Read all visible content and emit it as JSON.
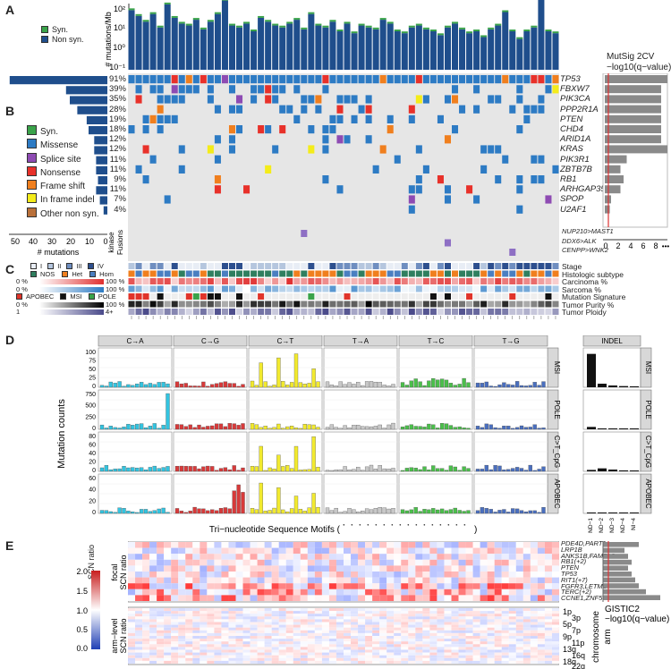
{
  "panels": {
    "A": "A",
    "B": "B",
    "C": "C",
    "D": "D",
    "E": "E"
  },
  "panelA": {
    "ylabel": "# mutations/Mb",
    "yticks": [
      "10²",
      "10¹",
      "10⁰",
      "10⁻¹"
    ],
    "legend": [
      {
        "label": "Syn.",
        "color": "#3aa34a"
      },
      {
        "label": "Non syn.",
        "color": "#1f4e8c"
      }
    ],
    "tmb_values": [
      2.1,
      1.8,
      1.5,
      1.9,
      1.2,
      2.4,
      1.7,
      1.4,
      1.3,
      1.6,
      1.1,
      1.5,
      1.9,
      2.6,
      1.3,
      1.2,
      1.4,
      1.0,
      1.7,
      1.5,
      1.3,
      1.2,
      1.4,
      1.6,
      1.1,
      1.9,
      1.3,
      1.2,
      1.5,
      1.0,
      1.4,
      0.9,
      1.3,
      1.2,
      1.1,
      1.6,
      1.4,
      1.0,
      0.9,
      1.2,
      1.3,
      1.1,
      1.0,
      0.8,
      1.2,
      1.4,
      1.1,
      0.9,
      1.0,
      0.7,
      1.1,
      1.3,
      2.0,
      1.0,
      0.6,
      1.0,
      1.2,
      3.1,
      1.0,
      0.9
    ]
  },
  "mutsig": {
    "title1": "MutSig 2CV",
    "title2": "−log10(q−value)",
    "xticks": [
      "0",
      "2",
      "4",
      "6",
      "8",
      "•••"
    ],
    "values": [
      10,
      9,
      9,
      9,
      9,
      9,
      9,
      10,
      3.5,
      2.5,
      3,
      2.5,
      1,
      0.8,
      0,
      0,
      0
    ]
  },
  "panelB": {
    "legend": [
      {
        "label": "Syn.",
        "color": "#3aa34a"
      },
      {
        "label": "Missense",
        "color": "#2d7bc4"
      },
      {
        "label": "Splice site",
        "color": "#8e4bb3"
      },
      {
        "label": "Nonsense",
        "color": "#e8312a"
      },
      {
        "label": "Frame shift",
        "color": "#f07f1e"
      },
      {
        "label": "In frame indel",
        "color": "#f4ec1a"
      },
      {
        "label": "Other non syn.",
        "color": "#b9703a"
      }
    ],
    "genes": [
      "TP53",
      "FBXW7",
      "PIK3CA",
      "PPP2R1A",
      "PTEN",
      "CHD4",
      "ARID1A",
      "KRAS",
      "PIK3R1",
      "ZBTB7B",
      "RB1",
      "ARHGAP35",
      "SPOP",
      "U2AF1"
    ],
    "pcts": [
      "91%",
      "39%",
      "35%",
      "28%",
      "19%",
      "18%",
      "12%",
      "12%",
      "11%",
      "11%",
      "9%",
      "11%",
      "7%",
      "4%"
    ],
    "counts": [
      52,
      22,
      20,
      16,
      11,
      10,
      7,
      7,
      6,
      6,
      5,
      6,
      4,
      2
    ],
    "xticks": [
      "50",
      "40",
      "30",
      "20",
      "10",
      "0"
    ],
    "xlabel": "# mutations",
    "fusion_label1": "kinase",
    "fusion_label2": "Fusions",
    "fusions": [
      "NUP210>MAST1",
      "DDX6>ALK",
      "CENPP>WNK2"
    ]
  },
  "panelC": {
    "stage_legend": [
      "I",
      "II",
      "III",
      "IV"
    ],
    "histo_legend": [
      "NOS",
      "Het",
      "Hom"
    ],
    "carcinoma": [
      "0 %",
      "100 %"
    ],
    "sarcoma": [
      "0 %",
      "100 %"
    ],
    "sig_legend": [
      "APOBEC",
      "MSI",
      "POLE"
    ],
    "purity": [
      "0 %",
      "100 %"
    ],
    "ploidy": [
      "1",
      "4+"
    ],
    "track_labels": [
      "Stage",
      "Histologic subtype",
      "Carcinoma %",
      "Sarcoma %",
      "Mutation Signature",
      "Tumor Purity %",
      "Tumor Ploidy"
    ],
    "samples": [
      "N5-A4WC",
      "N8-A4RT",
      "N5-A4RS",
      "N5-A4RU",
      "N5-A4RJ",
      "N5-A4RN",
      "N8-A4PN",
      "N9-A4Q1",
      "NA-A4QX",
      "N5-A4RO",
      "NG-A4VU",
      "N5-A4RV",
      "NA-A4QV",
      "N9-A4QT",
      "N8-A4PQ",
      "N5-A4RE",
      "N8-A4PL",
      "N5-A4RW",
      "N5-A4RF",
      "N5-A4RA",
      "N5-A4RM",
      "N6-A4VF",
      "NF-A4WX",
      "NF-A4X2",
      "N8-A56S",
      "N6-A4VC",
      "N9-A4Q7",
      "N8-A4QY",
      "N8-A4PO",
      "NA-A4R1",
      "N5-A4RD",
      "NG-A4VW",
      "N9-A4PZ",
      "N7-A4Y5",
      "N8-A56T",
      "NF-A5CP",
      "N5-A4RX",
      "N5-A4R8",
      "N8-A4PM",
      "N9-A4Q3",
      "N5-A4RB",
      "N9-A4Q8",
      "QN-A5NM",
      "NA-A4QW",
      "N6-A4VD",
      "N6-A4VG",
      "N5-A4R4",
      "N8-A4PI",
      "N7-A4Y8",
      "NA-A4QY",
      "NF-A4WU",
      "QN-A5NN",
      "N5-A4RX",
      "N8-A4PP",
      "N8-A4PR",
      "N9-A4Q6",
      "NA-A4R0",
      "N6-A4VE",
      "N7-A4Y0",
      "NA-A4QZ"
    ]
  },
  "panelD": {
    "columns": [
      "C→A",
      "C→G",
      "C→T",
      "T→A",
      "T→C",
      "T→G"
    ],
    "rows": [
      "MSI",
      "POLE",
      "C>T_CpG",
      "APOBEC"
    ],
    "row_yticks": [
      [
        "100",
        "75",
        "50",
        "25",
        "0"
      ],
      [
        "750",
        "500",
        "250",
        "0"
      ],
      [
        "80",
        "60",
        "40",
        "20",
        "0"
      ],
      [
        "60",
        "40",
        "20",
        "0"
      ]
    ],
    "row_max": [
      120,
      800,
      90,
      80
    ],
    "ylabel": "Mutation counts",
    "xlabel": "Tri−nucleotide Sequence Motifs (",
    "xlabel_end": ")",
    "indel_title": "INDEL",
    "indel_xticks": [
      "ND−1",
      "ND−2",
      "ND−3",
      "ND−4",
      "NI−4"
    ],
    "indel_values": [
      [
        280,
        30,
        15,
        10,
        8
      ],
      [
        20,
        5,
        3,
        2,
        2
      ],
      [
        12,
        25,
        15,
        8,
        6
      ],
      [
        5,
        3,
        2,
        1,
        1
      ]
    ],
    "colors": [
      "#33c4e0",
      "#d83a3a",
      "#f2ea2e",
      "#c8c8c8",
      "#4bbf4b",
      "#4a6fbf"
    ]
  },
  "panelE": {
    "colorbar_title": "SCN ratio",
    "colorbar_ticks": [
      "2.0",
      "1.5",
      "1.0",
      "0.5",
      "0.0"
    ],
    "focal_label1": "focal",
    "focal_label2": "SCN ratio",
    "arm_label1": "arm−level",
    "arm_label2": "SCN ratio",
    "focal_genes": [
      "PDE4D,PART1",
      "LRP1B",
      "ANKS1B,FAM71C",
      "RB1(+2)",
      "PTEN",
      "TP53",
      "RIT1(+7)",
      "FGFR3,LETM1",
      "TERC(+2)",
      "CCNE1,ZNF536"
    ],
    "arms_left": [
      "1p",
      "5p",
      "9p",
      "13q",
      "18q"
    ],
    "arms_right": [
      "3p",
      "7p",
      "11p",
      "16q",
      "22q"
    ],
    "chrom_label": "chromosome",
    "arm_word": "arm",
    "gistic_title": "GISTIC2",
    "gistic_sub": "−log10(q−value)",
    "gistic_values": [
      5,
      3,
      3.5,
      4,
      3.5,
      4,
      4.5,
      5,
      6,
      8
    ]
  }
}
